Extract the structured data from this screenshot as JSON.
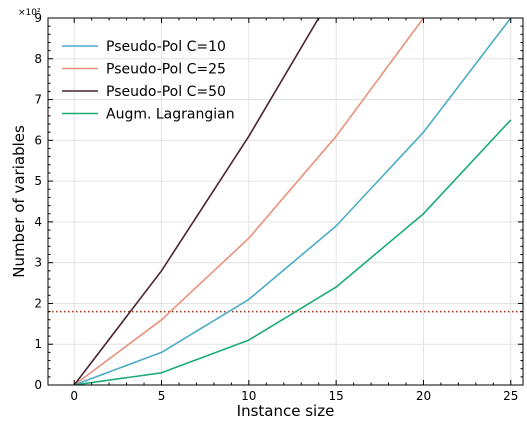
{
  "chart_data": {
    "type": "line",
    "xlabel": "Instance size",
    "ylabel": "Number of variables",
    "y_scale_label": "×10²",
    "xlim": [
      -1.5,
      25.7
    ],
    "ylim": [
      0,
      9
    ],
    "xticks": [
      0,
      5,
      10,
      15,
      20,
      25
    ],
    "yticks": [
      0,
      1,
      2,
      3,
      4,
      5,
      6,
      7,
      8,
      9
    ],
    "x_tick_labels": [
      "0",
      "5",
      "10",
      "15",
      "20",
      "25"
    ],
    "y_tick_labels": [
      "0",
      "1",
      "2",
      "3",
      "4",
      "5",
      "6",
      "7",
      "8",
      "9"
    ],
    "grid": true,
    "legend_position": "top-left",
    "series": [
      {
        "name": "Pseudo-Pol C=10",
        "color": "#4bacc6",
        "x": [
          0,
          5,
          10,
          15,
          20,
          25
        ],
        "y": [
          0,
          0.8,
          2.1,
          3.9,
          6.2,
          9.0
        ]
      },
      {
        "name": "Pseudo-Pol C=25",
        "color": "#e8927c",
        "x": [
          0,
          5,
          10,
          15,
          20
        ],
        "y": [
          0,
          1.6,
          3.6,
          6.1,
          9.0
        ]
      },
      {
        "name": "Pseudo-Pol C=50",
        "color": "#4a2530",
        "x": [
          0,
          5,
          10,
          14
        ],
        "y": [
          0,
          2.8,
          6.1,
          9.0
        ]
      },
      {
        "name": "Augm. Lagrangian",
        "color": "#1aab77",
        "x": [
          0,
          5,
          10,
          15,
          20,
          25
        ],
        "y": [
          0,
          0.3,
          1.1,
          2.4,
          4.2,
          6.5
        ]
      }
    ],
    "reference_line": {
      "y": 1.8,
      "color": "#a0301e",
      "style": "dotted"
    }
  }
}
